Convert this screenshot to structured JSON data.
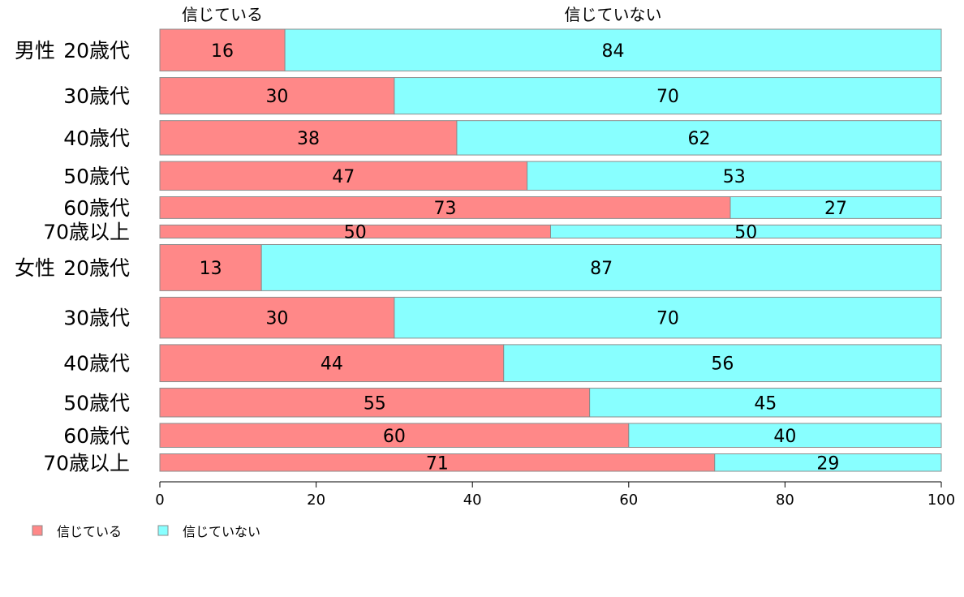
{
  "chart_data": {
    "type": "bar",
    "orientation": "horizontal",
    "stacked": true,
    "column_headers": [
      "信じている",
      "信じていない"
    ],
    "groups": [
      {
        "group": "男性",
        "rows": [
          {
            "category": "20歳代",
            "values": [
              16,
              84
            ],
            "weight": 0.096
          },
          {
            "category": "30歳代",
            "values": [
              30,
              70
            ],
            "weight": 0.084
          },
          {
            "category": "40歳代",
            "values": [
              38,
              62
            ],
            "weight": 0.079
          },
          {
            "category": "50歳代",
            "values": [
              47,
              53
            ],
            "weight": 0.066
          },
          {
            "category": "60歳代",
            "values": [
              73,
              27
            ],
            "weight": 0.05
          },
          {
            "category": "70歳以上",
            "values": [
              50,
              50
            ],
            "weight": 0.03
          }
        ]
      },
      {
        "group": "女性",
        "rows": [
          {
            "category": "20歳代",
            "values": [
              13,
              87
            ],
            "weight": 0.106
          },
          {
            "category": "30歳代",
            "values": [
              30,
              70
            ],
            "weight": 0.094
          },
          {
            "category": "40歳代",
            "values": [
              44,
              56
            ],
            "weight": 0.085
          },
          {
            "category": "50歳代",
            "values": [
              55,
              45
            ],
            "weight": 0.066
          },
          {
            "category": "60歳代",
            "values": [
              60,
              40
            ],
            "weight": 0.055
          },
          {
            "category": "70歳以上",
            "values": [
              71,
              29
            ],
            "weight": 0.04
          }
        ]
      }
    ],
    "series": [
      {
        "name": "信じている",
        "color": "#FF8888"
      },
      {
        "name": "信じていない",
        "color": "#88FFFF"
      }
    ],
    "xlim": [
      0,
      100
    ],
    "xticks": [
      0,
      20,
      40,
      60,
      80,
      100
    ],
    "grid": false,
    "legend_position": "bottom-left",
    "title": "",
    "xlabel": "",
    "ylabel": ""
  }
}
